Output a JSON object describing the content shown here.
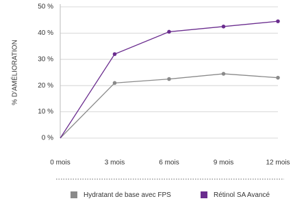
{
  "chart_data": {
    "type": "line",
    "y_label": "% D'AMÉLIORATION",
    "categories": [
      "0  mois",
      "3  mois",
      "6 mois",
      "9 mois",
      "12 mois"
    ],
    "series": [
      {
        "name": "Hydratant de base avec FPS",
        "color": "#8a8a8a",
        "values": [
          0,
          21,
          22.5,
          24.5,
          23
        ]
      },
      {
        "name": "Rétinol SA Avancé",
        "color": "#6a2c8e",
        "values": [
          0,
          32,
          40.5,
          42.5,
          44.5
        ]
      }
    ],
    "ylim": [
      0,
      50
    ],
    "yticks": [
      {
        "value": 0,
        "label": "0 %"
      },
      {
        "value": 10,
        "label": "10 %"
      },
      {
        "value": 20,
        "label": "20 %"
      },
      {
        "value": 30,
        "label": "30 %"
      },
      {
        "value": 40,
        "label": "40 %"
      },
      {
        "value": 50,
        "label": "50 %"
      }
    ],
    "grid": true
  }
}
